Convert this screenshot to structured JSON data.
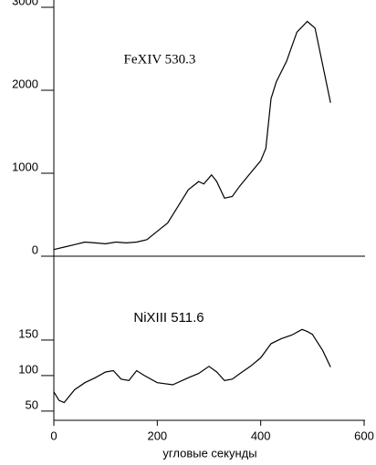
{
  "chart_data": [
    {
      "type": "line",
      "x": [
        0,
        20,
        40,
        60,
        80,
        100,
        120,
        140,
        160,
        180,
        200,
        220,
        240,
        260,
        280,
        290,
        305,
        315,
        330,
        345,
        360,
        380,
        400,
        410,
        420,
        430,
        450,
        470,
        490,
        505,
        520,
        535
      ],
      "series": [
        {
          "name": "FeXIV 530.3",
          "color": "#000000",
          "values": [
            80,
            110,
            140,
            170,
            160,
            150,
            170,
            160,
            170,
            200,
            300,
            400,
            600,
            800,
            900,
            870,
            980,
            900,
            700,
            720,
            850,
            1000,
            1150,
            1300,
            1900,
            2100,
            2350,
            2700,
            2830,
            2750,
            2300,
            1850
          ]
        }
      ],
      "xlim": [
        0,
        600
      ],
      "ylim": [
        0,
        3000
      ],
      "yticks": [
        0,
        1000,
        2000,
        3000
      ]
    },
    {
      "type": "line",
      "x": [
        0,
        10,
        20,
        40,
        60,
        80,
        100,
        115,
        130,
        145,
        160,
        175,
        200,
        230,
        260,
        280,
        300,
        315,
        330,
        345,
        360,
        380,
        400,
        420,
        440,
        460,
        480,
        490,
        500,
        520,
        535
      ],
      "series": [
        {
          "name": "NiXIII 511.6",
          "color": "#000000",
          "values": [
            77,
            65,
            62,
            80,
            90,
            97,
            105,
            107,
            95,
            93,
            107,
            100,
            90,
            87,
            97,
            103,
            113,
            105,
            93,
            95,
            103,
            113,
            125,
            145,
            152,
            157,
            165,
            162,
            158,
            135,
            112
          ]
        }
      ],
      "xlim": [
        0,
        600
      ],
      "ylim": [
        37,
        200
      ],
      "yticks": [
        50,
        100,
        150
      ],
      "xticks": [
        0,
        200,
        400,
        600
      ],
      "xlabel": "угловые секунды"
    }
  ]
}
